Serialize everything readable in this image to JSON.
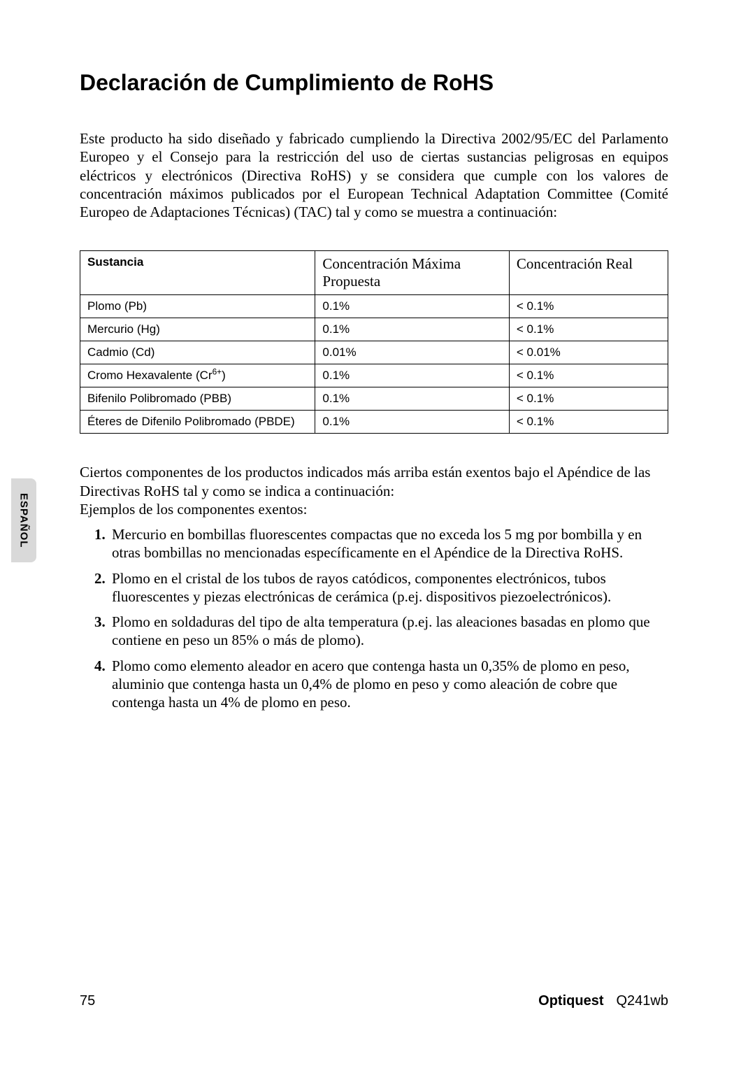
{
  "title": "Declaración de Cumplimiento de RoHS",
  "intro": "Este producto ha sido diseñado y fabricado cumpliendo la Directiva 2002/95/EC del Parlamento Europeo y el Consejo para la restricción del uso de ciertas sustancias peligrosas en equipos eléctricos y electrónicos (Directiva RoHS) y se considera que cumple con los valores de concentración máximos publicados por el European Technical Adaptation Committee (Comité Europeo de Adaptaciones Técnicas) (TAC) tal y como se muestra a continuación:",
  "table": {
    "headers": {
      "substance": "Sustancia",
      "proposed": "Concentración Máxima Propuesta",
      "real": "Concentración Real"
    },
    "rows": [
      {
        "substance": "Plomo (Pb)",
        "proposed": "0.1%",
        "real": "< 0.1%"
      },
      {
        "substance": "Mercurio (Hg)",
        "proposed": "0.1%",
        "real": "< 0.1%"
      },
      {
        "substance": "Cadmio (Cd)",
        "proposed": "0.01%",
        "real": "< 0.01%"
      },
      {
        "substance_html": "Cromo Hexavalente (Cr<sup>6+</sup>)",
        "proposed": "0.1%",
        "real": "< 0.1%"
      },
      {
        "substance": "Bifenilo Polibromado (PBB)",
        "proposed": "0.1%",
        "real": "< 0.1%"
      },
      {
        "substance": "Éteres de Difenilo Polibromado (PBDE)",
        "proposed": "0.1%",
        "real": "< 0.1%"
      }
    ]
  },
  "after_table_p1": "Ciertos componentes de los productos indicados más arriba están exentos bajo el Apéndice de las Directivas RoHS tal y como se indica a continuación:",
  "after_table_p2": "Ejemplos de los componentes exentos:",
  "exemptions": [
    "Mercurio en bombillas fluorescentes compactas que no exceda los 5 mg por bombilla y en otras bombillas no mencionadas específicamente en el Apéndice de la Directiva RoHS.",
    "Plomo en el cristal de los tubos de rayos catódicos, componentes electrónicos, tubos fluorescentes y piezas electrónicas de cerámica (p.ej. dispositivos piezoelectrónicos).",
    "Plomo en soldaduras del tipo de alta temperatura (p.ej. las aleaciones basadas en plomo que contiene en peso un 85% o más de plomo).",
    "Plomo como elemento aleador en acero que contenga hasta un 0,35% de plomo en peso, aluminio que contenga hasta un 0,4% de plomo en peso y como aleación de cobre que contenga hasta un 4% de plomo en peso."
  ],
  "side_tab": "ESPAÑOL",
  "footer": {
    "page_number": "75",
    "brand": "Optiquest",
    "model": "Q241wb"
  },
  "colors": {
    "background": "#ffffff",
    "text": "#000000",
    "tab_bg": "#d9d9d9",
    "border": "#000000"
  }
}
